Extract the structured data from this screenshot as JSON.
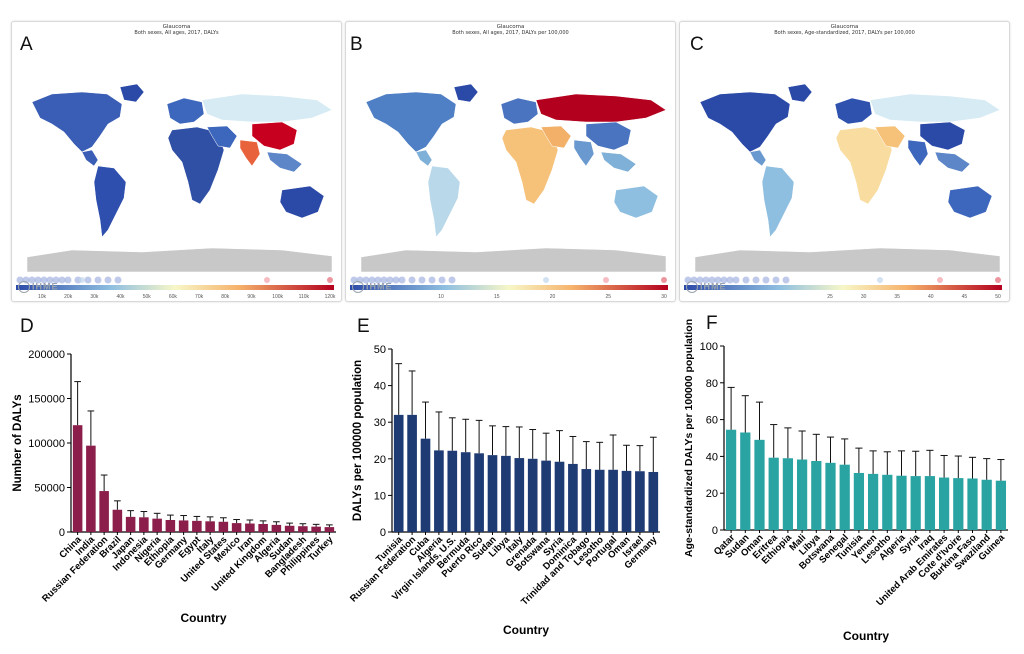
{
  "maps": [
    {
      "letter": "A",
      "title": "Glaucoma",
      "subtitle": "Both sexes, All ages, 2017, DALYs",
      "legend_ticks": [
        "10k",
        "20k",
        "30k",
        "40k",
        "50k",
        "60k",
        "70k",
        "80k",
        "90k",
        "100k",
        "110k",
        "120k"
      ],
      "scale": "blue-red",
      "logo": "IHME"
    },
    {
      "letter": "B",
      "title": "Glaucoma",
      "subtitle": "Both sexes, All ages, 2017, DALYs per 100,000",
      "legend_ticks": [
        "10",
        "15",
        "20",
        "25",
        "30"
      ],
      "scale": "blue-red",
      "logo": "IHME"
    },
    {
      "letter": "C",
      "title": "Glaucoma",
      "subtitle": "Both sexes, Age-standardized, 2017, DALYs per 100,000",
      "legend_ticks": [
        "25",
        "30",
        "35",
        "40",
        "45",
        "50"
      ],
      "scale": "blue-red",
      "logo": "IHME"
    }
  ],
  "colors": {
    "D": "#8b1e4b",
    "E": "#1f3b73",
    "F": "#2aa3a3",
    "map_low": "#2b4aa8",
    "map_high": "#b3001e"
  },
  "chart_data": [
    {
      "type": "bar",
      "letter": "D",
      "title": "",
      "xlabel": "Country",
      "ylabel": "Number of DALYs",
      "ylim": [
        0,
        200000
      ],
      "yticks": [
        "0",
        "50000",
        "100000",
        "150000",
        "200000"
      ],
      "ytick_values": [
        0,
        50000,
        100000,
        150000,
        200000
      ],
      "categories": [
        "China",
        "India",
        "Russian Federation",
        "Brazil",
        "Japan",
        "Indonesia",
        "Nigeria",
        "Ethiopia",
        "Germany",
        "Egypt",
        "Italy",
        "United States",
        "Mexico",
        "Iran",
        "United Kingdom",
        "Algeria",
        "Sudan",
        "Bangladesh",
        "Philippines",
        "Turkey"
      ],
      "values": [
        120000,
        97000,
        46000,
        25000,
        17000,
        16500,
        15000,
        13500,
        13000,
        12500,
        12000,
        11500,
        10000,
        9500,
        9000,
        8000,
        7000,
        6500,
        6000,
        5500
      ],
      "errors": [
        49000,
        39000,
        18000,
        10000,
        7000,
        6500,
        6000,
        5500,
        5500,
        5000,
        5000,
        4500,
        4000,
        4000,
        3500,
        3500,
        3000,
        2800,
        2600,
        2500
      ]
    },
    {
      "type": "bar",
      "letter": "E",
      "title": "",
      "xlabel": "Country",
      "ylabel": "DALYs per 100000 population",
      "ylim": [
        0,
        50
      ],
      "yticks": [
        "0",
        "10",
        "20",
        "30",
        "40",
        "50"
      ],
      "ytick_values": [
        0,
        10,
        20,
        30,
        40,
        50
      ],
      "categories": [
        "Tunisia",
        "Russian Federation",
        "Cuba",
        "Algeria",
        "Virgin Islands, U.S.",
        "Bermuda",
        "Puerto Rico",
        "Sudan",
        "Libya",
        "Italy",
        "Grenada",
        "Botswana",
        "Syria",
        "Dominica",
        "Trinidad and Tobago",
        "Lesotho",
        "Portugal",
        "Oman",
        "Israel",
        "Germany"
      ],
      "values": [
        32,
        32,
        25.5,
        22.3,
        22.2,
        21.8,
        21.5,
        21,
        20.8,
        20.2,
        20,
        19.5,
        19.2,
        18.6,
        17.2,
        17,
        17,
        16.7,
        16.6,
        16.4
      ],
      "errors": [
        14,
        12,
        10,
        10.5,
        9,
        9,
        9,
        8,
        8,
        8.5,
        8,
        7.5,
        8.5,
        7.5,
        7.5,
        7.5,
        9.5,
        7,
        7,
        9.5
      ]
    },
    {
      "type": "bar",
      "letter": "F",
      "title": "",
      "xlabel": "Country",
      "ylabel": "Age-standardized DALYs per 100000 population",
      "ylim": [
        0,
        100
      ],
      "yticks": [
        "0",
        "20",
        "40",
        "60",
        "80",
        "100"
      ],
      "ytick_values": [
        0,
        20,
        40,
        60,
        80,
        100
      ],
      "categories": [
        "Qatar",
        "Sudan",
        "Oman",
        "Eritrea",
        "Ethiopia",
        "Mali",
        "Libya",
        "Botswana",
        "Senegal",
        "Tunisia",
        "Yemen",
        "Lesotho",
        "Algeria",
        "Syria",
        "Iraq",
        "United Arab Emirates",
        "Cote d'Ivoire",
        "Burkina Faso",
        "Swaziland",
        "Guinea"
      ],
      "values": [
        54.5,
        53,
        49,
        39.3,
        39,
        38.3,
        37.5,
        36.5,
        35.5,
        31,
        30.5,
        30,
        29.5,
        29.3,
        29.3,
        28.5,
        28.2,
        28,
        27.3,
        26.8
      ],
      "errors": [
        23,
        20,
        20.5,
        18,
        16.5,
        15.5,
        14.5,
        14,
        14,
        13.5,
        12.5,
        12.5,
        13.5,
        13.5,
        14,
        12,
        12,
        11.5,
        11.5,
        11.5
      ]
    }
  ]
}
